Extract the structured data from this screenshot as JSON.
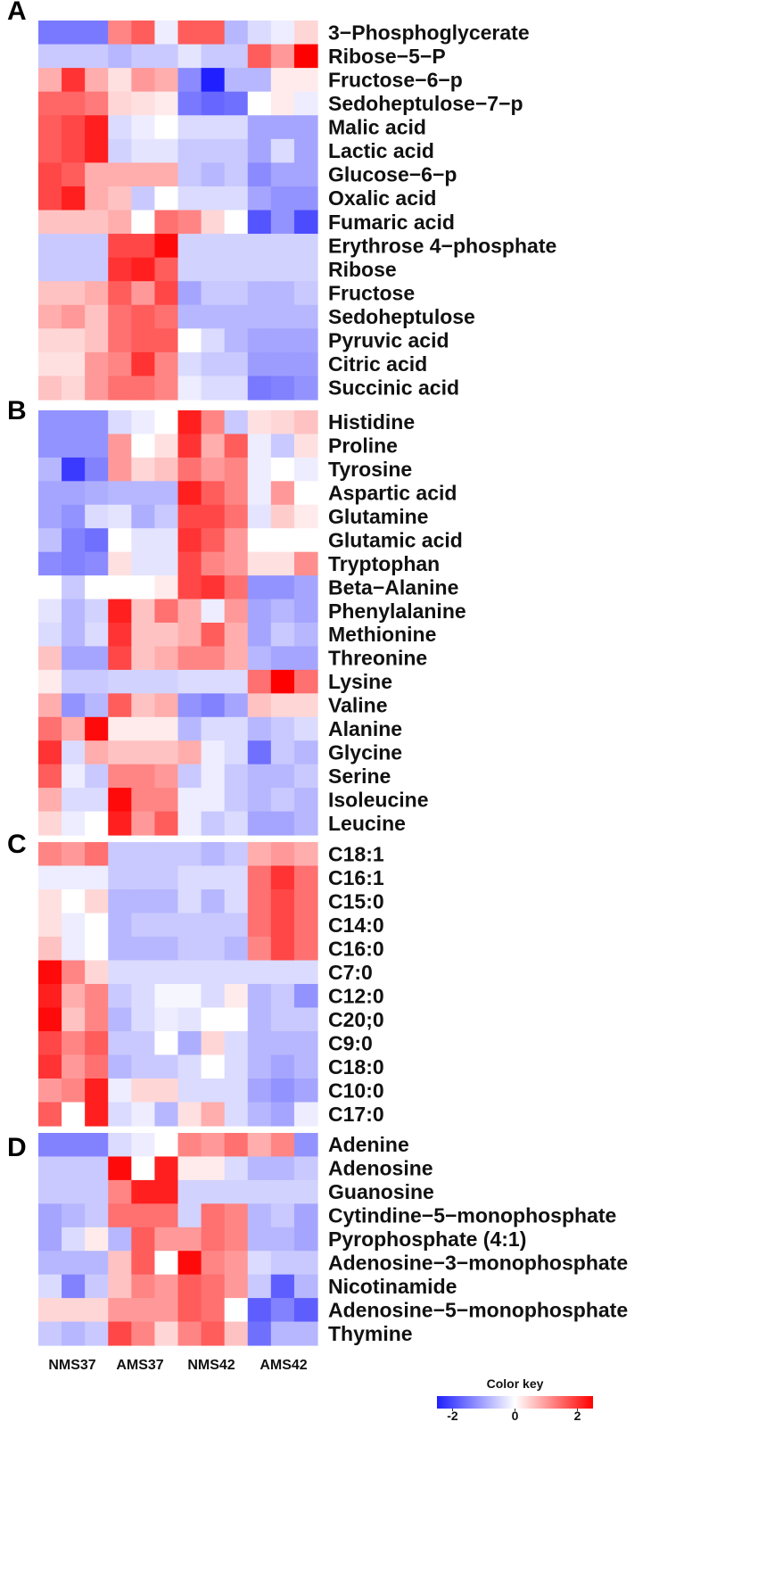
{
  "chart_data": {
    "type": "heatmap",
    "columns": [
      "NMS37",
      "NMS37",
      "NMS37",
      "AMS37",
      "AMS37",
      "AMS37",
      "NMS42",
      "NMS42",
      "NMS42",
      "AMS42",
      "AMS42",
      "AMS42"
    ],
    "column_groups": [
      "NMS37",
      "AMS37",
      "NMS42",
      "AMS42"
    ],
    "color_key": {
      "title": "Color key",
      "ticks": [
        "-2",
        "0",
        "2"
      ],
      "min": -2.5,
      "max": 2.5,
      "low_color": "#1f1fff",
      "mid_color": "#ffffff",
      "high_color": "#ff0000"
    },
    "panels": [
      {
        "label": "A",
        "rows": [
          {
            "name": "3−Phosphoglycerate",
            "values": [
              -1.5,
              -1.5,
              -1.5,
              1.2,
              1.6,
              -0.2,
              1.6,
              1.6,
              -0.8,
              -0.4,
              -0.2,
              0.4
            ]
          },
          {
            "name": "Ribose−5−P",
            "values": [
              -0.6,
              -0.6,
              -0.6,
              -0.8,
              -0.6,
              -0.6,
              -0.3,
              -0.6,
              -0.6,
              1.6,
              1.0,
              2.5
            ]
          },
          {
            "name": "Fructose−6−p",
            "values": [
              0.8,
              2.0,
              0.8,
              0.3,
              1.0,
              0.8,
              -1.3,
              -2.5,
              -0.8,
              -0.8,
              0.2,
              0.2
            ]
          },
          {
            "name": "Sedoheptulose−7−p",
            "values": [
              1.5,
              1.5,
              1.3,
              0.4,
              0.3,
              0.2,
              -1.5,
              -1.7,
              -1.6,
              0.0,
              0.2,
              -0.2
            ]
          },
          {
            "name": "Malic acid",
            "values": [
              1.6,
              1.8,
              2.2,
              -0.4,
              -0.2,
              0.0,
              -0.4,
              -0.4,
              -0.4,
              -1.0,
              -1.0,
              -1.0
            ]
          },
          {
            "name": "Lactic acid",
            "values": [
              1.6,
              1.8,
              2.2,
              -0.5,
              -0.3,
              -0.3,
              -0.6,
              -0.6,
              -0.6,
              -1.0,
              -0.4,
              -1.0
            ]
          },
          {
            "name": "Glucose−6−p",
            "values": [
              1.8,
              1.6,
              0.8,
              0.8,
              0.8,
              0.8,
              -0.6,
              -0.8,
              -0.6,
              -1.3,
              -1.0,
              -1.0
            ]
          },
          {
            "name": "Oxalic acid",
            "values": [
              1.8,
              2.2,
              0.8,
              0.6,
              -0.6,
              0.0,
              -0.4,
              -0.4,
              -0.4,
              -1.0,
              -1.2,
              -1.2
            ]
          },
          {
            "name": "Fumaric acid",
            "values": [
              0.6,
              0.6,
              0.6,
              0.8,
              0.0,
              1.4,
              1.2,
              0.4,
              0.0,
              -1.9,
              -1.2,
              -2.0
            ]
          },
          {
            "name": "Erythrose 4−phosphate",
            "values": [
              -0.6,
              -0.6,
              -0.6,
              1.8,
              1.8,
              2.4,
              -0.5,
              -0.5,
              -0.5,
              -0.5,
              -0.5,
              -0.5
            ]
          },
          {
            "name": "Ribose",
            "values": [
              -0.6,
              -0.6,
              -0.6,
              2.0,
              2.2,
              1.6,
              -0.5,
              -0.5,
              -0.5,
              -0.5,
              -0.5,
              -0.5
            ]
          },
          {
            "name": "Fructose",
            "values": [
              0.6,
              0.6,
              0.8,
              1.6,
              1.0,
              1.8,
              -1.0,
              -0.6,
              -0.6,
              -0.8,
              -0.8,
              -0.6
            ]
          },
          {
            "name": "Sedoheptulose",
            "values": [
              0.8,
              1.0,
              0.6,
              1.4,
              1.6,
              1.4,
              -0.8,
              -0.8,
              -0.8,
              -0.8,
              -0.8,
              -0.8
            ]
          },
          {
            "name": "Pyruvic acid",
            "values": [
              0.4,
              0.4,
              0.6,
              1.4,
              1.6,
              1.6,
              0.0,
              -0.4,
              -0.8,
              -1.0,
              -1.0,
              -1.0
            ]
          },
          {
            "name": "Citric acid",
            "values": [
              0.3,
              0.3,
              1.0,
              1.2,
              2.0,
              1.2,
              -0.4,
              -0.6,
              -0.6,
              -1.1,
              -1.1,
              -1.1
            ]
          },
          {
            "name": "Succinic acid",
            "values": [
              0.6,
              0.4,
              1.0,
              1.4,
              1.4,
              1.2,
              -0.2,
              -0.4,
              -0.4,
              -1.5,
              -1.4,
              -1.2
            ]
          }
        ]
      },
      {
        "label": "B",
        "rows": [
          {
            "name": "Histidine",
            "values": [
              -1.2,
              -1.2,
              -1.2,
              -0.4,
              -0.2,
              0.0,
              2.2,
              1.2,
              -0.6,
              0.3,
              0.4,
              0.6
            ]
          },
          {
            "name": "Proline",
            "values": [
              -1.2,
              -1.2,
              -1.2,
              1.0,
              0.0,
              0.3,
              2.0,
              0.8,
              1.6,
              -0.2,
              -0.6,
              0.3
            ]
          },
          {
            "name": "Tyrosine",
            "values": [
              -0.8,
              -2.2,
              -1.4,
              1.0,
              0.4,
              0.6,
              1.4,
              1.0,
              1.2,
              -0.2,
              0.0,
              -0.2
            ]
          },
          {
            "name": "Aspartic acid",
            "values": [
              -1.0,
              -1.0,
              -0.9,
              -0.8,
              -0.8,
              -0.8,
              2.2,
              1.6,
              1.2,
              -0.2,
              1.0,
              0.0
            ]
          },
          {
            "name": "Glutamine",
            "values": [
              -1.0,
              -1.2,
              -0.4,
              -0.3,
              -0.9,
              -0.6,
              1.8,
              1.8,
              1.4,
              -0.3,
              0.5,
              0.2
            ]
          },
          {
            "name": "Glutamic acid",
            "values": [
              -0.7,
              -1.4,
              -1.6,
              0.0,
              -0.3,
              -0.3,
              2.0,
              1.6,
              1.0,
              0.0,
              0.0,
              0.0
            ]
          },
          {
            "name": "Tryptophan",
            "values": [
              -1.3,
              -1.4,
              -1.3,
              0.3,
              -0.3,
              -0.3,
              1.8,
              1.2,
              1.0,
              0.3,
              0.3,
              1.1
            ]
          },
          {
            "name": "Beta−Alanine",
            "values": [
              0.0,
              -0.6,
              0.0,
              0.0,
              0.0,
              0.2,
              1.8,
              2.0,
              1.4,
              -1.2,
              -1.2,
              -1.0
            ]
          },
          {
            "name": "Phenylalanine",
            "values": [
              -0.3,
              -0.8,
              -0.5,
              2.2,
              0.6,
              1.4,
              0.8,
              -0.2,
              1.0,
              -1.0,
              -0.8,
              -1.0
            ]
          },
          {
            "name": "Methionine",
            "values": [
              -0.4,
              -0.8,
              -0.4,
              2.0,
              0.6,
              0.6,
              0.8,
              1.6,
              0.8,
              -1.0,
              -0.6,
              -0.8
            ]
          },
          {
            "name": "Threonine",
            "values": [
              0.6,
              -1.0,
              -1.0,
              1.8,
              0.6,
              0.8,
              1.2,
              1.2,
              0.8,
              -0.8,
              -1.0,
              -1.0
            ]
          },
          {
            "name": "Lysine",
            "values": [
              0.2,
              -0.6,
              -0.6,
              -0.5,
              -0.5,
              -0.5,
              -0.4,
              -0.4,
              -0.4,
              1.4,
              2.5,
              1.4
            ]
          },
          {
            "name": "Valine",
            "values": [
              0.8,
              -1.2,
              -0.8,
              1.6,
              0.6,
              0.8,
              -1.2,
              -1.4,
              -1.0,
              0.6,
              0.4,
              0.4
            ]
          },
          {
            "name": "Alanine",
            "values": [
              1.4,
              0.8,
              2.4,
              0.2,
              0.2,
              0.2,
              -0.8,
              -0.4,
              -0.4,
              -0.8,
              -0.6,
              -0.4
            ]
          },
          {
            "name": "Glycine",
            "values": [
              2.0,
              -0.4,
              0.8,
              0.6,
              0.6,
              0.6,
              0.8,
              -0.2,
              -0.4,
              -1.6,
              -0.6,
              -0.8
            ]
          },
          {
            "name": "Serine",
            "values": [
              1.6,
              -0.2,
              -0.6,
              1.2,
              1.2,
              1.0,
              -0.6,
              -0.2,
              -0.6,
              -0.8,
              -0.8,
              -0.6
            ]
          },
          {
            "name": "Isoleucine",
            "values": [
              0.8,
              -0.4,
              -0.4,
              2.4,
              1.2,
              1.2,
              -0.2,
              -0.2,
              -0.6,
              -0.8,
              -0.6,
              -0.8
            ]
          },
          {
            "name": "Leucine",
            "values": [
              0.4,
              -0.2,
              0.0,
              2.2,
              1.0,
              1.6,
              -0.2,
              -0.6,
              -0.4,
              -1.0,
              -1.0,
              -0.8
            ]
          }
        ]
      },
      {
        "label": "C",
        "rows": [
          {
            "name": "C18:1",
            "values": [
              1.2,
              1.0,
              1.4,
              -0.6,
              -0.6,
              -0.6,
              -0.6,
              -0.8,
              -0.6,
              0.8,
              1.0,
              0.8
            ]
          },
          {
            "name": "C16:1",
            "values": [
              -0.2,
              -0.2,
              -0.2,
              -0.6,
              -0.6,
              -0.6,
              -0.4,
              -0.4,
              -0.4,
              1.4,
              2.0,
              1.4
            ]
          },
          {
            "name": "C15:0",
            "values": [
              0.3,
              0.0,
              0.4,
              -0.8,
              -0.8,
              -0.8,
              -0.4,
              -0.8,
              -0.4,
              1.4,
              1.8,
              1.4
            ]
          },
          {
            "name": "C14:0",
            "values": [
              0.3,
              -0.2,
              0.0,
              -0.8,
              -0.6,
              -0.6,
              -0.6,
              -0.6,
              -0.6,
              1.4,
              1.8,
              1.4
            ]
          },
          {
            "name": "C16:0",
            "values": [
              0.6,
              -0.2,
              0.0,
              -0.8,
              -0.8,
              -0.8,
              -0.6,
              -0.6,
              -0.8,
              1.2,
              1.8,
              1.4
            ]
          },
          {
            "name": "C7:0",
            "values": [
              2.4,
              1.2,
              0.4,
              -0.4,
              -0.4,
              -0.4,
              -0.4,
              -0.4,
              -0.4,
              -0.4,
              -0.4,
              -0.4
            ]
          },
          {
            "name": "C12:0",
            "values": [
              2.2,
              0.8,
              1.2,
              -0.6,
              -0.4,
              -0.1,
              -0.1,
              -0.4,
              0.2,
              -0.8,
              -0.6,
              -1.2
            ]
          },
          {
            "name": "C20;0",
            "values": [
              2.4,
              0.6,
              1.2,
              -0.8,
              -0.4,
              -0.2,
              -0.3,
              0.0,
              0.0,
              -0.8,
              -0.6,
              -0.6
            ]
          },
          {
            "name": "C9:0",
            "values": [
              1.8,
              1.2,
              1.6,
              -0.6,
              -0.6,
              0.0,
              -0.9,
              0.4,
              -0.4,
              -0.8,
              -0.8,
              -0.8
            ]
          },
          {
            "name": "C18:0",
            "values": [
              2.0,
              1.0,
              1.4,
              -0.8,
              -0.6,
              -0.6,
              -0.4,
              0.0,
              -0.4,
              -0.8,
              -1.0,
              -0.8
            ]
          },
          {
            "name": "C10:0",
            "values": [
              1.0,
              1.2,
              2.2,
              -0.2,
              0.4,
              0.4,
              -0.4,
              -0.4,
              -0.4,
              -1.0,
              -1.2,
              -1.0
            ]
          },
          {
            "name": "C17:0",
            "values": [
              1.6,
              0.0,
              2.2,
              -0.4,
              -0.2,
              -0.8,
              0.3,
              0.8,
              -0.4,
              -0.8,
              -1.0,
              -0.2
            ]
          }
        ]
      },
      {
        "label": "D",
        "rows": [
          {
            "name": "Adenine",
            "values": [
              -1.4,
              -1.4,
              -1.4,
              -0.4,
              -0.2,
              0.0,
              1.2,
              1.0,
              1.4,
              0.8,
              1.2,
              -1.2
            ]
          },
          {
            "name": "Adenosine",
            "values": [
              -0.6,
              -0.6,
              -0.6,
              2.4,
              0.0,
              2.2,
              0.2,
              0.2,
              -0.4,
              -0.8,
              -0.8,
              -0.6
            ]
          },
          {
            "name": "Guanosine",
            "values": [
              -0.6,
              -0.6,
              -0.6,
              1.2,
              2.2,
              2.2,
              -0.5,
              -0.5,
              -0.5,
              -0.5,
              -0.5,
              -0.5
            ]
          },
          {
            "name": "Cytindine−5−monophosphate",
            "values": [
              -1.0,
              -0.8,
              -0.6,
              1.4,
              1.4,
              1.4,
              -0.5,
              1.4,
              1.2,
              -0.8,
              -0.6,
              -1.0
            ]
          },
          {
            "name": "Pyrophosphate (4:1)",
            "values": [
              -1.0,
              -0.4,
              0.2,
              -0.8,
              1.6,
              1.0,
              1.0,
              1.4,
              1.2,
              -0.8,
              -0.8,
              -1.0
            ]
          },
          {
            "name": "Adenosine−3−monophosphate",
            "values": [
              -0.8,
              -0.8,
              -0.8,
              0.6,
              1.6,
              0.0,
              2.4,
              1.2,
              1.0,
              -0.4,
              -0.6,
              -0.6
            ]
          },
          {
            "name": "Nicotinamide",
            "values": [
              -0.4,
              -1.4,
              -0.6,
              0.6,
              1.2,
              1.0,
              1.6,
              1.4,
              1.0,
              -0.6,
              -1.8,
              -0.8
            ]
          },
          {
            "name": "Adenosine−5−monophosphate",
            "values": [
              0.4,
              0.4,
              0.4,
              1.0,
              1.0,
              1.0,
              1.6,
              1.4,
              0.0,
              -1.8,
              -1.4,
              -1.8
            ]
          },
          {
            "name": "Thymine",
            "values": [
              -0.6,
              -0.8,
              -0.6,
              1.8,
              1.2,
              0.4,
              1.2,
              1.6,
              0.6,
              -1.6,
              -0.8,
              -0.8
            ]
          }
        ]
      }
    ]
  }
}
